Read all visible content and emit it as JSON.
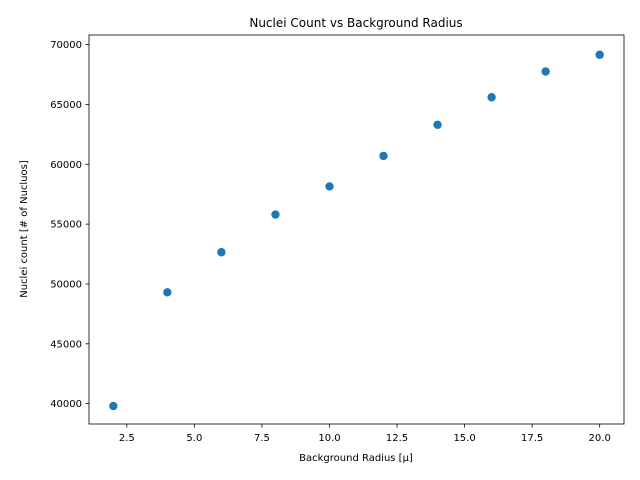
{
  "chart_data": {
    "type": "scatter",
    "title": "Nuclei Count vs Background Radius",
    "xlabel": "Background Radius [μ]",
    "ylabel": "Nuclei count [# of Nucluos]",
    "xlim": [
      1.1,
      20.9
    ],
    "ylim": [
      38300,
      70800
    ],
    "xticks": [
      2.5,
      5.0,
      7.5,
      10.0,
      12.5,
      15.0,
      17.5,
      20.0
    ],
    "xtick_labels": [
      "2.5",
      "5.0",
      "7.5",
      "10.0",
      "12.5",
      "15.0",
      "17.5",
      "20.0"
    ],
    "yticks": [
      40000,
      45000,
      50000,
      55000,
      60000,
      65000,
      70000
    ],
    "ytick_labels": [
      "40000",
      "45000",
      "50000",
      "55000",
      "60000",
      "65000",
      "70000"
    ],
    "grid": false,
    "series": [
      {
        "color": "#1f77b4",
        "x": [
          2,
          4,
          6,
          8,
          10,
          12,
          14,
          16,
          18,
          20
        ],
        "y": [
          39800,
          49300,
          52650,
          55800,
          58150,
          60700,
          63300,
          65600,
          67750,
          69150
        ]
      }
    ]
  }
}
